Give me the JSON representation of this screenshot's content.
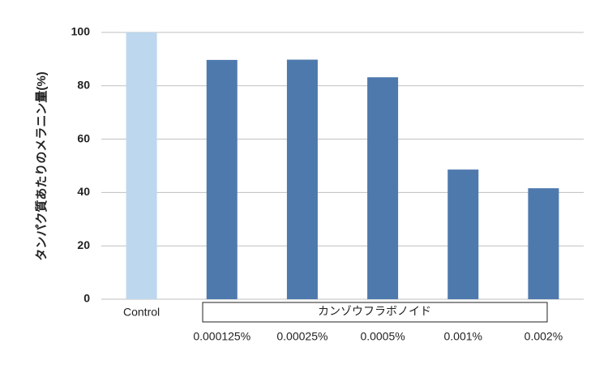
{
  "chart_data": {
    "type": "bar",
    "y_label": "タンパク質あたりのメラニン量(%)",
    "categories": [
      "Control",
      "0.000125%",
      "0.00025%",
      "0.0005%",
      "0.001%",
      "0.002%"
    ],
    "values": [
      100,
      89.7,
      89.8,
      83.2,
      48.6,
      41.6
    ],
    "colors": [
      "#bdd7ee",
      "#4e79ad",
      "#4e79ad",
      "#4e79ad",
      "#4e79ad",
      "#4e79ad"
    ],
    "group_label": "カンゾウフラボノイド",
    "ylim": [
      0,
      100
    ],
    "yticks": [
      0,
      20,
      40,
      60,
      80,
      100
    ],
    "grid": true
  }
}
